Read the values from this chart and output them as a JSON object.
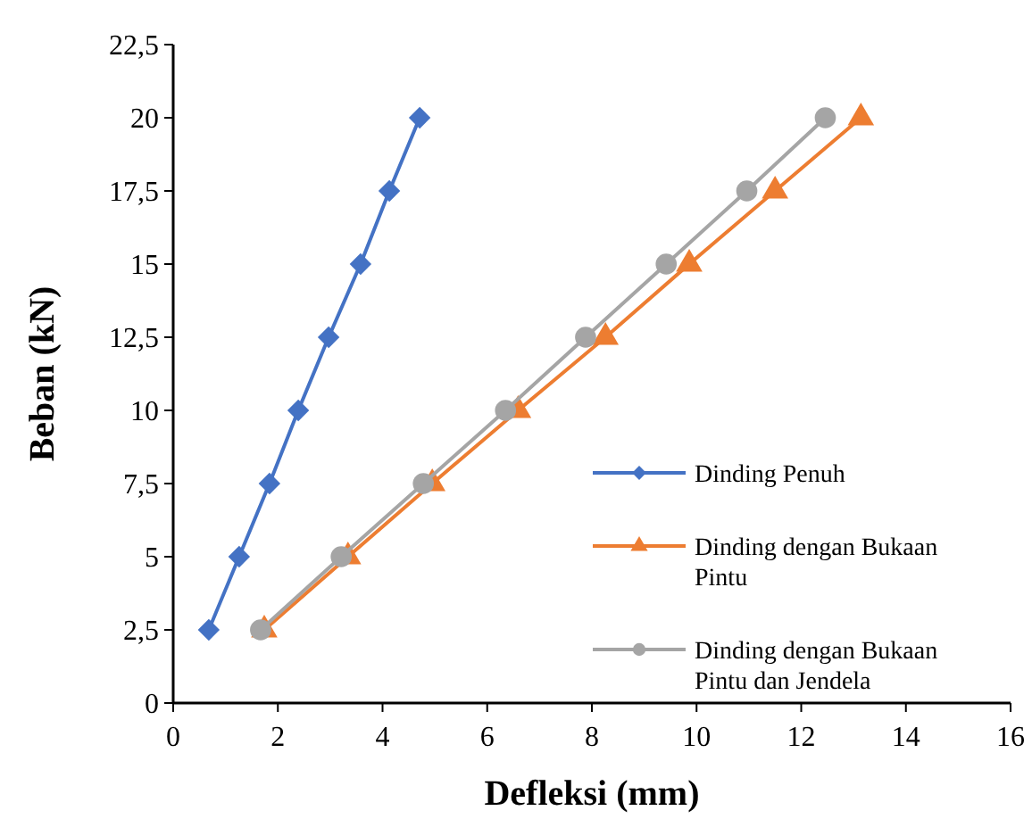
{
  "chart_data": {
    "type": "line",
    "xlabel": "Defleksi (mm)",
    "ylabel": "Beban (kN)",
    "xlim": [
      0,
      16
    ],
    "xticks": [
      0,
      2,
      4,
      6,
      8,
      10,
      12,
      14,
      16
    ],
    "ylim": [
      0,
      22.5
    ],
    "yticks": [
      0,
      {
        "value": 2.5,
        "label": "2,5"
      },
      5,
      {
        "value": 7.5,
        "label": "7,5"
      },
      10,
      {
        "value": 12.5,
        "label": "12,5"
      },
      15,
      {
        "value": 17.5,
        "label": "17,5"
      },
      20,
      {
        "value": 22.5,
        "label": "22,5"
      }
    ],
    "grid": false,
    "legend": "right",
    "line_style": "solid",
    "series": [
      {
        "name": "Dinding Penuh",
        "color": "#4472c4",
        "marker": "diamond",
        "x": [
          0.68,
          1.26,
          1.84,
          2.39,
          2.97,
          3.58,
          4.13,
          4.71
        ],
        "values": [
          2.5,
          5,
          7.5,
          10,
          12.5,
          15,
          17.5,
          20
        ]
      },
      {
        "name": "Dinding dengan Bukaan Pintu",
        "color": "#ed7d31",
        "marker": "triangle",
        "x": [
          1.74,
          3.34,
          4.95,
          6.59,
          8.26,
          9.86,
          11.5,
          13.14
        ],
        "values": [
          2.5,
          5,
          7.5,
          10,
          12.5,
          15,
          17.5,
          20
        ]
      },
      {
        "name": "Dinding dengan Bukaan Pintu dan Jendela",
        "color": "#a5a5a5",
        "marker": "circle",
        "x": [
          1.67,
          3.21,
          4.78,
          6.35,
          7.88,
          9.42,
          10.96,
          12.46
        ],
        "values": [
          2.5,
          5,
          7.5,
          10,
          12.5,
          15,
          17.5,
          20
        ]
      }
    ]
  }
}
